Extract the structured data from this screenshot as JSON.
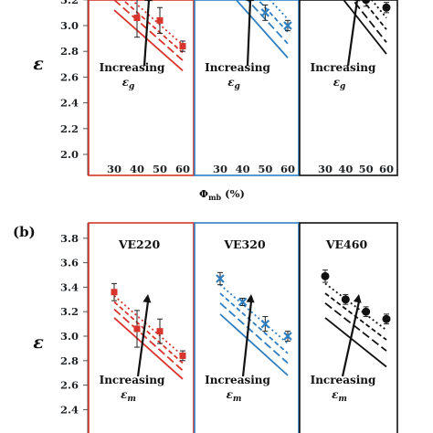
{
  "chart_data": [
    {
      "type": "scatter",
      "title": "",
      "ylabel": "ε",
      "xlabel": "Φmb (%)",
      "ylim": [
        2.0,
        3.8
      ],
      "ytick_labels": [
        "2.0",
        "2.2",
        "2.4",
        "2.6",
        "2.8",
        "3.0",
        "3.2"
      ],
      "y_ticks": [
        2.0,
        2.2,
        2.4,
        2.6,
        2.8,
        3.0,
        3.2
      ],
      "xlim": [
        20,
        65
      ],
      "x_ticks": [
        30,
        40,
        50,
        60
      ],
      "xtick_labels": [
        "30",
        "40",
        "50",
        "60"
      ],
      "panels": [
        {
          "title": "",
          "color": "#d9352c",
          "annotation": "Increasing",
          "annotation_symbol": "εg",
          "points": [
            {
              "x": 40,
              "y": 3.06,
              "err": 0.15
            },
            {
              "x": 50,
              "y": 3.04,
              "err": 0.1
            },
            {
              "x": 60,
              "y": 2.84,
              "err": 0.04
            }
          ],
          "model_lines": [
            {
              "style": "solid",
              "from": [
                30,
                3.12
              ],
              "to": [
                60,
                2.65
              ]
            },
            {
              "style": "long-dash",
              "from": [
                30,
                3.2
              ],
              "to": [
                60,
                2.73
              ]
            },
            {
              "style": "dash",
              "from": [
                30,
                3.26
              ],
              "to": [
                60,
                2.79
              ]
            },
            {
              "style": "dot",
              "from": [
                30,
                3.32
              ],
              "to": [
                60,
                2.85
              ]
            }
          ]
        },
        {
          "title": "",
          "color": "#2f7fc1",
          "annotation": "Increasing",
          "annotation_symbol": "εg",
          "points": [
            {
              "x": 50,
              "y": 3.1,
              "err": 0.06
            },
            {
              "x": 60,
              "y": 3.0,
              "err": 0.04
            }
          ],
          "model_lines": [
            {
              "style": "solid",
              "from": [
                30,
                3.34
              ],
              "to": [
                60,
                2.75
              ]
            },
            {
              "style": "long-dash",
              "from": [
                30,
                3.43
              ],
              "to": [
                60,
                2.86
              ]
            },
            {
              "style": "dash",
              "from": [
                30,
                3.52
              ],
              "to": [
                60,
                2.95
              ]
            },
            {
              "style": "dot",
              "from": [
                30,
                3.62
              ],
              "to": [
                60,
                3.05
              ]
            }
          ]
        },
        {
          "title": "",
          "color": "#111111",
          "annotation": "Increasing",
          "annotation_symbol": "εg",
          "points": [
            {
              "x": 50,
              "y": 3.2,
              "err": 0.05
            },
            {
              "x": 60,
              "y": 3.14,
              "err": 0.04
            }
          ],
          "model_lines": [
            {
              "style": "solid",
              "from": [
                30,
                3.38
              ],
              "to": [
                60,
                2.78
              ]
            },
            {
              "style": "long-dash",
              "from": [
                30,
                3.47
              ],
              "to": [
                60,
                2.87
              ]
            },
            {
              "style": "dash",
              "from": [
                30,
                3.56
              ],
              "to": [
                60,
                2.97
              ]
            },
            {
              "style": "dot",
              "from": [
                30,
                3.64
              ],
              "to": [
                60,
                3.06
              ]
            }
          ]
        }
      ]
    },
    {
      "type": "scatter",
      "panel_label": "(b)",
      "title": "",
      "ylabel": "ε",
      "ylim": [
        2.4,
        3.9
      ],
      "y_ticks": [
        2.4,
        2.6,
        2.8,
        3.0,
        3.2,
        3.4,
        3.6,
        3.8
      ],
      "ytick_labels": [
        "2.4",
        "2.6",
        "2.8",
        "3.0",
        "3.2",
        "3.4",
        "3.6",
        "3.8"
      ],
      "xlim": [
        20,
        65
      ],
      "panels": [
        {
          "title": "VE220",
          "color": "#d9352c",
          "annotation": "Increasing",
          "annotation_symbol": "εm",
          "points": [
            {
              "x": 30,
              "y": 3.36,
              "err": 0.07
            },
            {
              "x": 40,
              "y": 3.06,
              "err": 0.15
            },
            {
              "x": 50,
              "y": 3.04,
              "err": 0.1
            },
            {
              "x": 60,
              "y": 2.84,
              "err": 0.04
            }
          ],
          "model_lines": [
            {
              "style": "solid",
              "from": [
                30,
                3.15
              ],
              "to": [
                60,
                2.65
              ]
            },
            {
              "style": "long-dash",
              "from": [
                30,
                3.22
              ],
              "to": [
                60,
                2.72
              ]
            },
            {
              "style": "dash",
              "from": [
                30,
                3.28
              ],
              "to": [
                60,
                2.78
              ]
            },
            {
              "style": "dot",
              "from": [
                30,
                3.33
              ],
              "to": [
                60,
                2.84
              ]
            }
          ]
        },
        {
          "title": "VE320",
          "color": "#2f7fc1",
          "annotation": "Increasing",
          "annotation_symbol": "εm",
          "points": [
            {
              "x": 30,
              "y": 3.47,
              "err": 0.05
            },
            {
              "x": 40,
              "y": 3.28,
              "err": 0.03
            },
            {
              "x": 50,
              "y": 3.1,
              "err": 0.06
            },
            {
              "x": 60,
              "y": 3.0,
              "err": 0.04
            }
          ],
          "model_lines": [
            {
              "style": "solid",
              "from": [
                30,
                3.18
              ],
              "to": [
                60,
                2.68
              ]
            },
            {
              "style": "long-dash",
              "from": [
                30,
                3.27
              ],
              "to": [
                60,
                2.78
              ]
            },
            {
              "style": "dash",
              "from": [
                30,
                3.35
              ],
              "to": [
                60,
                2.86
              ]
            },
            {
              "style": "dot",
              "from": [
                30,
                3.42
              ],
              "to": [
                60,
                2.94
              ]
            }
          ]
        },
        {
          "title": "VE460",
          "color": "#111111",
          "annotation": "Increasing",
          "annotation_symbol": "εm",
          "points": [
            {
              "x": 30,
              "y": 3.49,
              "err": 0.05
            },
            {
              "x": 40,
              "y": 3.3,
              "err": 0.04
            },
            {
              "x": 50,
              "y": 3.2,
              "err": 0.04
            },
            {
              "x": 60,
              "y": 3.14,
              "err": 0.04
            }
          ],
          "model_lines": [
            {
              "style": "solid",
              "from": [
                30,
                3.15
              ],
              "to": [
                60,
                2.75
              ]
            },
            {
              "style": "long-dash",
              "from": [
                30,
                3.27
              ],
              "to": [
                60,
                2.88
              ]
            },
            {
              "style": "dash",
              "from": [
                30,
                3.35
              ],
              "to": [
                60,
                2.97
              ]
            },
            {
              "style": "dot",
              "from": [
                30,
                3.43
              ],
              "to": [
                60,
                3.05
              ]
            }
          ]
        }
      ]
    }
  ]
}
